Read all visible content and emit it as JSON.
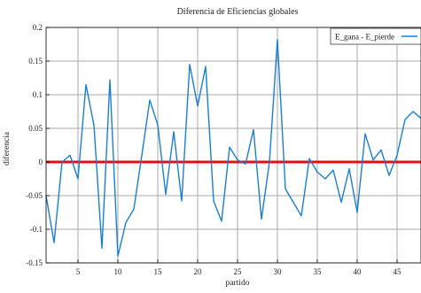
{
  "chart_data": {
    "type": "line",
    "title": "Diferencia de Eficiencias globales",
    "xlabel": "partido",
    "ylabel": "diferencia",
    "xlim": [
      1,
      48
    ],
    "ylim": [
      -0.15,
      0.2
    ],
    "xticks": [
      5,
      10,
      15,
      20,
      25,
      30,
      35,
      40,
      45
    ],
    "yticks": [
      -0.15,
      -0.1,
      -0.05,
      0,
      0.05,
      0.1,
      0.15,
      0.2
    ],
    "ytick_labels": [
      "-0.15",
      "-0.1",
      "-0.05",
      "0",
      "0.05",
      "0.1",
      "0.15",
      "0.2"
    ],
    "grid": true,
    "legend_position": "top-right",
    "series": [
      {
        "name": "E_gana - E_pierde",
        "color": "#1a7fd4",
        "x": [
          1,
          2,
          3,
          4,
          5,
          6,
          7,
          8,
          9,
          10,
          11,
          12,
          13,
          14,
          15,
          16,
          17,
          18,
          19,
          20,
          21,
          22,
          23,
          24,
          25,
          26,
          27,
          28,
          29,
          30,
          31,
          32,
          33,
          34,
          35,
          36,
          37,
          38,
          39,
          40,
          41,
          42,
          43,
          44,
          45,
          46,
          47,
          48
        ],
        "values": [
          -0.05,
          -0.12,
          0.0,
          0.01,
          -0.025,
          0.115,
          0.055,
          -0.128,
          0.122,
          -0.14,
          -0.09,
          -0.07,
          0.01,
          0.092,
          0.055,
          -0.048,
          0.045,
          -0.058,
          0.145,
          0.083,
          0.142,
          -0.058,
          -0.088,
          0.022,
          0.003,
          -0.003,
          0.048,
          -0.085,
          0.0,
          0.182,
          -0.04,
          -0.06,
          -0.08,
          0.005,
          -0.015,
          -0.025,
          -0.012,
          -0.06,
          -0.01,
          -0.075,
          0.042,
          0.003,
          0.018,
          -0.02,
          0.01,
          0.063,
          0.075,
          0.065
        ]
      }
    ],
    "reference_line": {
      "y": 0,
      "color": "#e01010"
    },
    "colors": {
      "grid": "#a8a8a8",
      "axes": "#000000",
      "background": "#ffffff"
    }
  }
}
